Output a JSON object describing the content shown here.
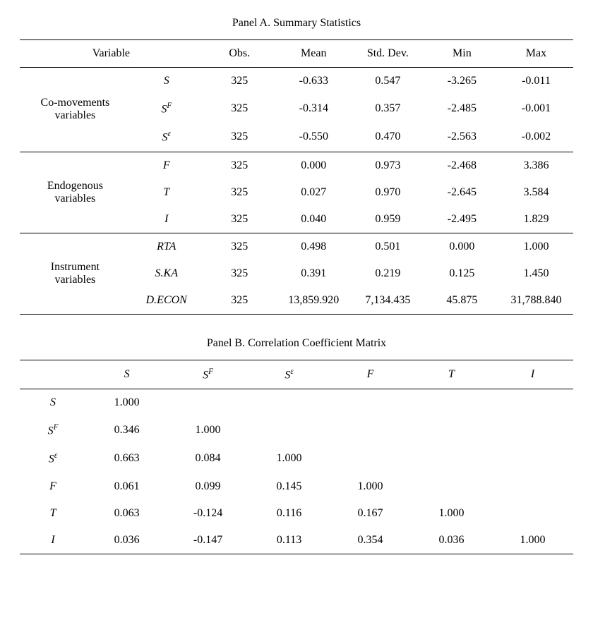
{
  "panelA": {
    "title": "Panel A. Summary Statistics",
    "header": {
      "variable": "Variable",
      "obs": "Obs.",
      "mean": "Mean",
      "std": "Std. Dev.",
      "min": "Min",
      "max": "Max"
    },
    "groups": [
      {
        "label": "Co-movements variables",
        "rows": [
          {
            "var_html": "S",
            "obs": "325",
            "mean": "-0.633",
            "std": "0.547",
            "min": "-3.265",
            "max": "-0.011"
          },
          {
            "var_html": "S^F",
            "obs": "325",
            "mean": "-0.314",
            "std": "0.357",
            "min": "-2.485",
            "max": "-0.001"
          },
          {
            "var_html": "S^ε",
            "obs": "325",
            "mean": "-0.550",
            "std": "0.470",
            "min": "-2.563",
            "max": "-0.002"
          }
        ]
      },
      {
        "label": "Endogenous variables",
        "rows": [
          {
            "var_html": "F",
            "obs": "325",
            "mean": "0.000",
            "std": "0.973",
            "min": "-2.468",
            "max": "3.386"
          },
          {
            "var_html": "T",
            "obs": "325",
            "mean": "0.027",
            "std": "0.970",
            "min": "-2.645",
            "max": "3.584"
          },
          {
            "var_html": "I",
            "obs": "325",
            "mean": "0.040",
            "std": "0.959",
            "min": "-2.495",
            "max": "1.829"
          }
        ]
      },
      {
        "label": "Instrument variables",
        "rows": [
          {
            "var_html": "RTA",
            "obs": "325",
            "mean": "0.498",
            "std": "0.501",
            "min": "0.000",
            "max": "1.000"
          },
          {
            "var_html": "S.KA",
            "obs": "325",
            "mean": "0.391",
            "std": "0.219",
            "min": "0.125",
            "max": "1.450"
          },
          {
            "var_html": "D.ECON",
            "obs": "325",
            "mean": "13,859.920",
            "std": "7,134.435",
            "min": "45.875",
            "max": "31,788.840"
          }
        ]
      }
    ]
  },
  "panelB": {
    "title": "Panel B. Correlation Coefficient Matrix",
    "columns": [
      "S",
      "S^F",
      "S^ε",
      "F",
      "T",
      "I"
    ],
    "rows": [
      {
        "label": "S",
        "vals": [
          "1.000",
          "",
          "",
          "",
          "",
          ""
        ]
      },
      {
        "label": "S^F",
        "vals": [
          "0.346",
          "1.000",
          "",
          "",
          "",
          ""
        ]
      },
      {
        "label": "S^ε",
        "vals": [
          "0.663",
          "0.084",
          "1.000",
          "",
          "",
          ""
        ]
      },
      {
        "label": "F",
        "vals": [
          "0.061",
          "0.099",
          "0.145",
          "1.000",
          "",
          ""
        ]
      },
      {
        "label": "T",
        "vals": [
          "0.063",
          "-0.124",
          "0.116",
          "0.167",
          "1.000",
          ""
        ]
      },
      {
        "label": "I",
        "vals": [
          "0.036",
          "-0.147",
          "0.113",
          "0.354",
          "0.036",
          "1.000"
        ]
      }
    ]
  },
  "style": {
    "font_family": "Times New Roman",
    "font_size_pt": 12,
    "text_color": "#000000",
    "background_color": "#ffffff",
    "rule_color": "#000000"
  }
}
